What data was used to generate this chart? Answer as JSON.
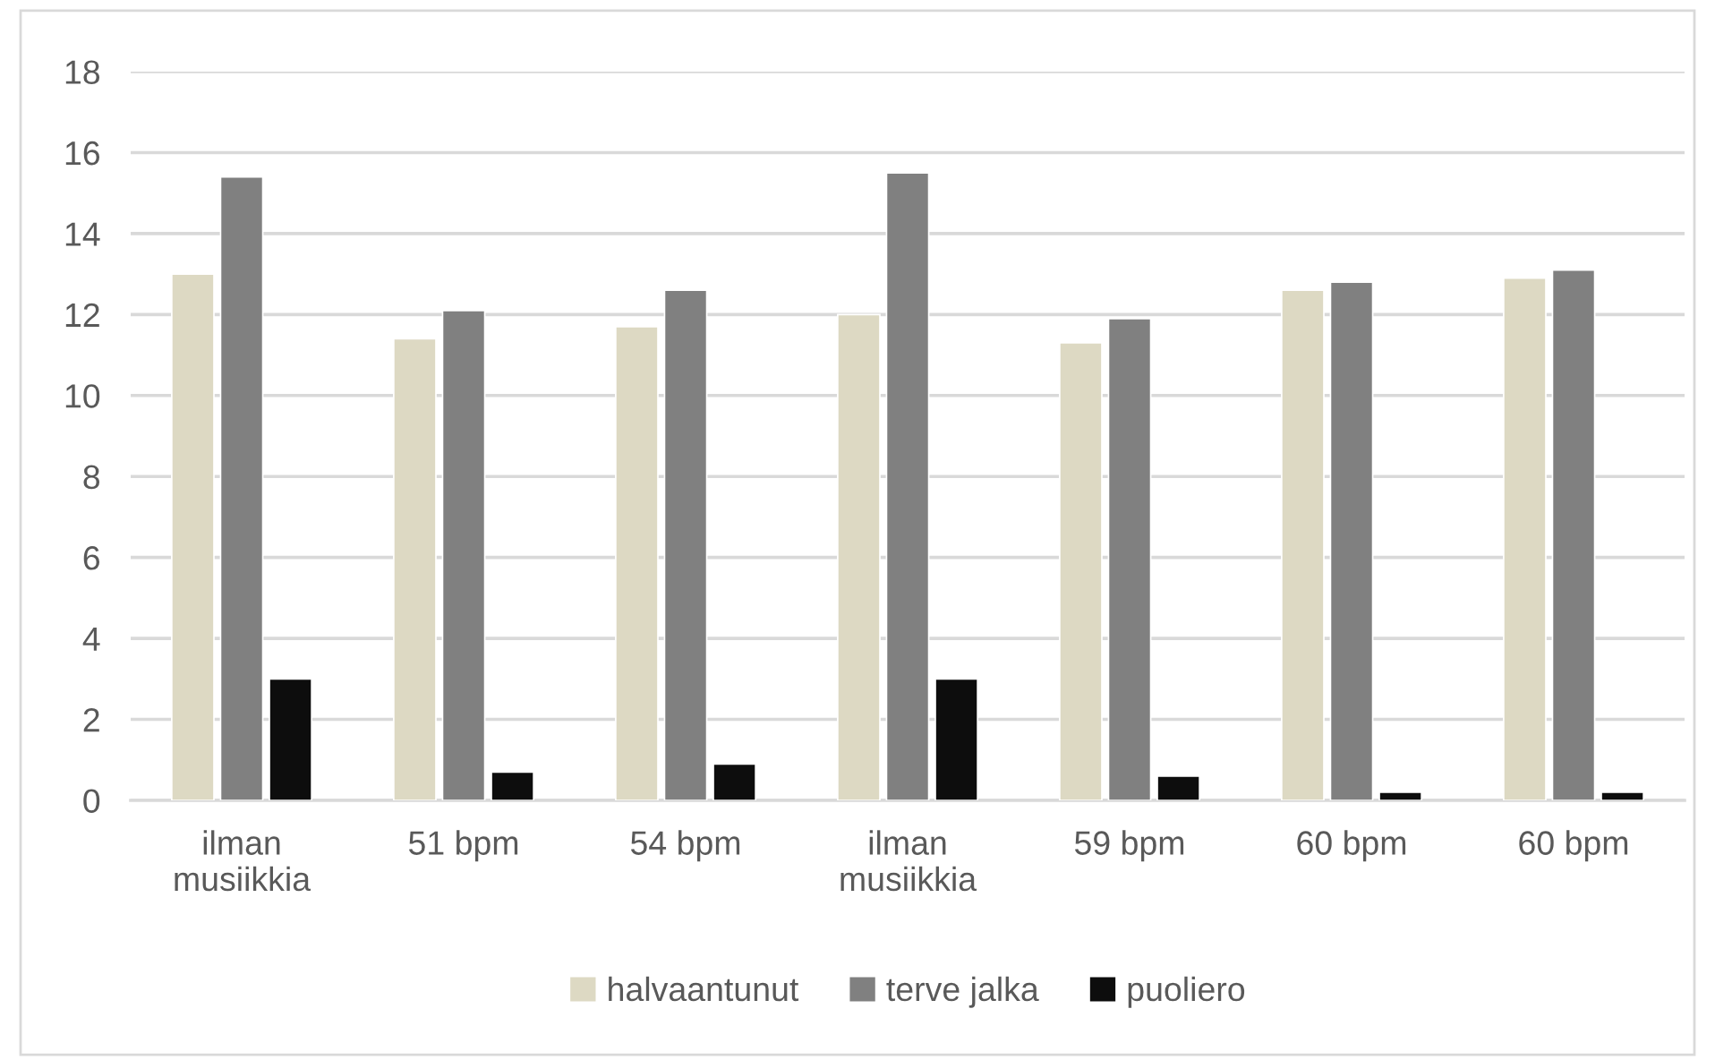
{
  "chart_data": {
    "type": "bar",
    "categories": [
      "ilman musiikkia",
      "51 bpm",
      "54 bpm",
      "ilman musiikkia",
      "59 bpm",
      "60 bpm",
      "60 bpm"
    ],
    "series": [
      {
        "name": "halvaantunut",
        "color": "#ddd9c3",
        "values": [
          13.0,
          11.4,
          11.7,
          12.0,
          11.3,
          12.6,
          12.9
        ]
      },
      {
        "name": "terve jalka",
        "color": "#808080",
        "values": [
          15.4,
          12.1,
          12.6,
          15.5,
          11.9,
          12.8,
          13.1
        ]
      },
      {
        "name": "puoliero",
        "color": "#0d0d0d",
        "values": [
          3.0,
          0.7,
          0.9,
          3.0,
          0.6,
          0.2,
          0.2
        ]
      }
    ],
    "ylim": [
      0,
      18
    ],
    "yticks": [
      0,
      2,
      4,
      6,
      8,
      10,
      12,
      14,
      16,
      18
    ],
    "grid": "y",
    "legend": "bottom"
  }
}
